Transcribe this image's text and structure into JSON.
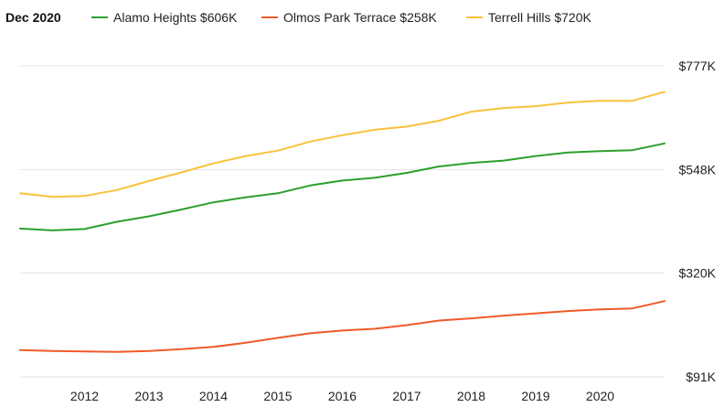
{
  "chart_data": {
    "type": "line",
    "title": "",
    "date_label": "Dec 2020",
    "xlabel": "",
    "ylabel": "",
    "grid": true,
    "legend_position": "top-left",
    "x_tick_labels": [
      "2012",
      "2013",
      "2014",
      "2015",
      "2016",
      "2017",
      "2018",
      "2019",
      "2020"
    ],
    "x_tick_years": [
      2012,
      2013,
      2014,
      2015,
      2016,
      2017,
      2018,
      2019,
      2020
    ],
    "xlim": [
      2011.0,
      2021.0
    ],
    "y_ticks": [
      {
        "value": 91,
        "label": "$91K"
      },
      {
        "value": 320,
        "label": "$320K"
      },
      {
        "value": 548,
        "label": "$548K"
      },
      {
        "value": 777,
        "label": "$777K"
      }
    ],
    "ylim": [
      91,
      777
    ],
    "x": [
      2011.0,
      2011.5,
      2012.0,
      2012.5,
      2013.0,
      2013.5,
      2014.0,
      2014.5,
      2015.0,
      2015.5,
      2016.0,
      2016.5,
      2017.0,
      2017.5,
      2018.0,
      2018.5,
      2019.0,
      2019.5,
      2020.0,
      2020.5,
      2021.0
    ],
    "series": [
      {
        "name": "Alamo Heights",
        "legend_label": "Alamo Heights $606K",
        "color": "#2ca02c",
        "values": [
          418,
          414,
          417,
          433,
          445,
          460,
          476,
          487,
          496,
          513,
          524,
          530,
          541,
          555,
          563,
          568,
          578,
          586,
          589,
          591,
          606
        ]
      },
      {
        "name": "Olmos Park Terrace",
        "legend_label": "Olmos Park Terrace $258K",
        "color": "#f05a28",
        "values": [
          150,
          148,
          147,
          146,
          148,
          152,
          157,
          166,
          177,
          187,
          193,
          197,
          205,
          215,
          220,
          226,
          231,
          236,
          240,
          242,
          258
        ]
      },
      {
        "name": "Terrell Hills",
        "legend_label": "Terrell Hills $720K",
        "color": "#f9c23c",
        "values": [
          496,
          488,
          490,
          503,
          523,
          542,
          562,
          578,
          590,
          610,
          624,
          636,
          643,
          656,
          676,
          684,
          688,
          696,
          700,
          700,
          720
        ]
      }
    ]
  }
}
